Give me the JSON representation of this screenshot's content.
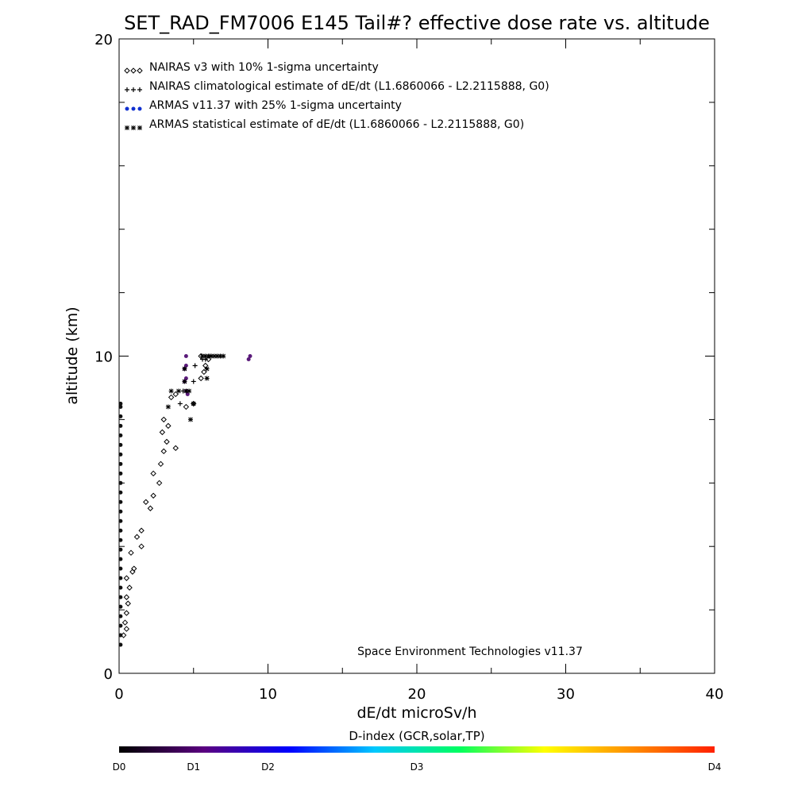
{
  "chart_data": {
    "type": "scatter",
    "title": "SET_RAD_FM7006  E145 Tail#? effective dose rate vs. altitude",
    "xlabel": "dE/dt microSv/h",
    "ylabel": "altitude (km)",
    "xlim": [
      0,
      40
    ],
    "ylim": [
      0,
      20
    ],
    "x_ticks": [
      "0",
      "10",
      "20",
      "30",
      "40"
    ],
    "y_ticks": [
      "0",
      "10",
      "20"
    ],
    "credit": "Space Environment Technologies v11.37",
    "legend_position": "top-left",
    "legend": [
      {
        "symbol": "◇◇◇",
        "color": "#000000",
        "label": "NAIRAS v3 with 10% 1-sigma uncertainty"
      },
      {
        "symbol": "+++",
        "color": "#000000",
        "label": "NAIRAS climatological estimate of dE/dt (L1.6860066 - L2.2115888, G0)"
      },
      {
        "symbol": "●●●",
        "color": "#1030d0",
        "label": "ARMAS v11.37 with 25% 1-sigma uncertainty"
      },
      {
        "symbol": "✱✱✱",
        "color": "#000000",
        "label": "ARMAS statistical estimate of dE/dt (L1.6860066 - L2.2115888, G0)"
      }
    ],
    "series": [
      {
        "name": "NAIRAS v3 with 10% 1-sigma uncertainty",
        "marker": "diamond",
        "points": [
          [
            0.3,
            1.2
          ],
          [
            0.5,
            1.4
          ],
          [
            0.4,
            1.6
          ],
          [
            0.5,
            1.9
          ],
          [
            0.6,
            2.2
          ],
          [
            0.5,
            2.4
          ],
          [
            0.7,
            2.7
          ],
          [
            0.5,
            3.0
          ],
          [
            0.9,
            3.2
          ],
          [
            1.0,
            3.3
          ],
          [
            0.8,
            3.8
          ],
          [
            1.5,
            4.0
          ],
          [
            1.2,
            4.3
          ],
          [
            1.5,
            4.5
          ],
          [
            2.1,
            5.2
          ],
          [
            1.8,
            5.4
          ],
          [
            2.3,
            5.6
          ],
          [
            2.7,
            6.0
          ],
          [
            2.3,
            6.3
          ],
          [
            2.8,
            6.6
          ],
          [
            3.0,
            7.0
          ],
          [
            3.2,
            7.3
          ],
          [
            2.9,
            7.6
          ],
          [
            3.3,
            7.8
          ],
          [
            3.0,
            8.0
          ],
          [
            3.8,
            7.1
          ],
          [
            4.5,
            8.4
          ],
          [
            3.5,
            8.7
          ],
          [
            3.8,
            8.8
          ],
          [
            5.5,
            9.3
          ],
          [
            5.7,
            9.5
          ],
          [
            5.8,
            9.7
          ],
          [
            5.5,
            10.0
          ],
          [
            6.0,
            9.9
          ],
          [
            5.0,
            8.5
          ]
        ]
      },
      {
        "name": "NAIRAS climatological estimate of dE/dt (L1.6860066 - L2.2115888, G0)",
        "marker": "plus",
        "points": [
          [
            4.1,
            8.5
          ],
          [
            4.3,
            8.9
          ],
          [
            5.0,
            9.2
          ],
          [
            5.1,
            9.7
          ],
          [
            5.6,
            9.9
          ],
          [
            5.8,
            9.9
          ],
          [
            6.1,
            10.0
          ]
        ]
      },
      {
        "name": "ARMAS v11.37 with 25% 1-sigma uncertainty",
        "marker": "dot",
        "points": [
          [
            0.1,
            0.9
          ],
          [
            0.1,
            1.2
          ],
          [
            0.1,
            1.5
          ],
          [
            0.1,
            1.8
          ],
          [
            0.1,
            2.1
          ],
          [
            0.1,
            2.4
          ],
          [
            0.1,
            2.7
          ],
          [
            0.1,
            3.0
          ],
          [
            0.1,
            3.3
          ],
          [
            0.1,
            3.6
          ],
          [
            0.1,
            3.9
          ],
          [
            0.1,
            4.2
          ],
          [
            0.1,
            4.5
          ],
          [
            0.1,
            4.8
          ],
          [
            0.1,
            5.1
          ],
          [
            0.1,
            5.4
          ],
          [
            0.1,
            5.7
          ],
          [
            0.1,
            6.0
          ],
          [
            0.1,
            6.3
          ],
          [
            0.1,
            6.6
          ],
          [
            0.1,
            6.9
          ],
          [
            0.1,
            7.2
          ],
          [
            0.1,
            7.5
          ],
          [
            0.1,
            7.8
          ],
          [
            0.1,
            8.1
          ],
          [
            0.1,
            8.4
          ],
          [
            0.1,
            8.5
          ],
          [
            4.5,
            10.0
          ],
          [
            4.5,
            9.7
          ],
          [
            4.4,
            9.6
          ],
          [
            4.5,
            9.3
          ],
          [
            4.4,
            9.2
          ],
          [
            4.5,
            8.9
          ],
          [
            4.6,
            8.8
          ],
          [
            8.8,
            10.0
          ],
          [
            8.7,
            9.9
          ]
        ]
      },
      {
        "name": "ARMAS statistical estimate of dE/dt (L1.6860066 - L2.2115888, G0)",
        "marker": "asterisk",
        "points": [
          [
            3.3,
            8.4
          ],
          [
            3.5,
            8.9
          ],
          [
            4.0,
            8.9
          ],
          [
            4.5,
            8.9
          ],
          [
            4.7,
            8.9
          ],
          [
            5.0,
            8.5
          ],
          [
            4.8,
            8.0
          ],
          [
            4.4,
            9.2
          ],
          [
            4.4,
            9.6
          ],
          [
            5.9,
            9.6
          ],
          [
            5.9,
            9.3
          ],
          [
            5.6,
            10.0
          ],
          [
            5.8,
            10.0
          ],
          [
            6.0,
            10.0
          ],
          [
            6.2,
            10.0
          ],
          [
            6.4,
            10.0
          ],
          [
            6.6,
            10.0
          ],
          [
            6.8,
            10.0
          ],
          [
            7.0,
            10.0
          ]
        ]
      }
    ],
    "colorbar": {
      "title": "D-index (GCR,solar,TP)",
      "labels": [
        "D0",
        "D1",
        "D2",
        "D3",
        "D4"
      ],
      "label_fractions": [
        0.0,
        0.125,
        0.25,
        0.5,
        1.0
      ],
      "stops": [
        "#000000",
        "#5a0080",
        "#0000ff",
        "#00c8ff",
        "#00ff60",
        "#ffff00",
        "#ff9000",
        "#ff2000"
      ]
    }
  }
}
